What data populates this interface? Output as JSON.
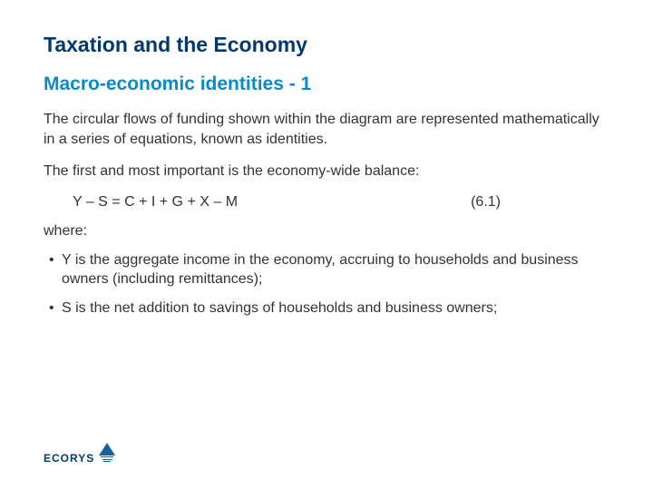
{
  "colors": {
    "title": "#003a72",
    "subtitle": "#0b8acb",
    "body": "#333333",
    "logo_text": "#003a72",
    "logo_triangle": "#1b5f9e",
    "logo_lines": "#1b5f9e"
  },
  "title": "Taxation and the Economy",
  "subtitle": "Macro-economic identities - 1",
  "para1": "The circular flows of funding shown within the diagram are represented mathematically in a series of equations, known as identities.",
  "para2": "The first and most important is the economy-wide balance:",
  "equation": "Y – S = C + I + G + X – M",
  "equation_number": "(6.1)",
  "where_label": "where:",
  "bullets": [
    "Y is the aggregate income in the economy, accruing to households and business owners (including remittances);",
    "S is the net addition to savings of households and business owners;"
  ],
  "logo_text": "ECORYS"
}
